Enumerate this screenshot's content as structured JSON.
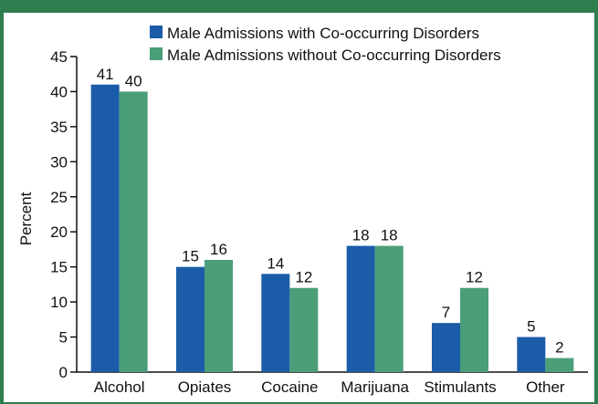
{
  "chart_data": {
    "type": "bar",
    "title": "",
    "xlabel": "",
    "ylabel": "Percent",
    "ylim": [
      0,
      45
    ],
    "yticks": [
      0,
      5,
      10,
      15,
      20,
      25,
      30,
      35,
      40,
      45
    ],
    "grid": false,
    "legend_position": "top-right",
    "categories": [
      "Alcohol",
      "Opiates",
      "Cocaine",
      "Marijuana",
      "Stimulants",
      "Other"
    ],
    "series": [
      {
        "name": "Male Admissions with Co-occurring Disorders",
        "color": "#1a5ca8",
        "values": [
          41,
          15,
          14,
          18,
          7,
          5
        ]
      },
      {
        "name": "Male Admissions without Co-occurring Disorders",
        "color": "#4a9e78",
        "values": [
          40,
          16,
          12,
          18,
          12,
          2
        ]
      }
    ]
  }
}
